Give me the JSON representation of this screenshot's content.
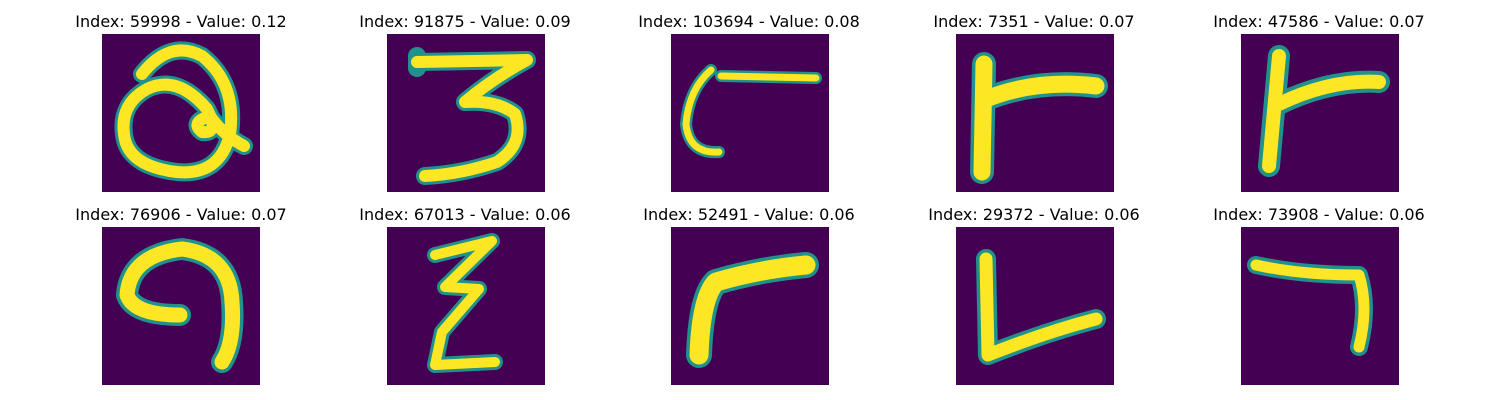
{
  "colors": {
    "background": "#440154",
    "stroke_core": "#fde725",
    "stroke_mid": "#5ec962",
    "stroke_edge": "#21918c"
  },
  "panels": [
    {
      "title": "Index: 59998 - Value: 0.12",
      "glyph": "looped-a-figure"
    },
    {
      "title": "Index: 91875 - Value: 0.09",
      "glyph": "three-figure"
    },
    {
      "title": "Index: 103694 - Value: 0.08",
      "glyph": "hook-with-bar-figure"
    },
    {
      "title": "Index: 7351 - Value: 0.07",
      "glyph": "r-shape-figure"
    },
    {
      "title": "Index: 47586 - Value: 0.07",
      "glyph": "r-shape-figure"
    },
    {
      "title": "Index: 76906 - Value: 0.07",
      "glyph": "nine-loop-figure"
    },
    {
      "title": "Index: 67013 - Value: 0.06",
      "glyph": "zigzag-figure"
    },
    {
      "title": "Index: 52491 - Value: 0.06",
      "glyph": "r-curve-figure"
    },
    {
      "title": "Index: 29372 - Value: 0.06",
      "glyph": "l-shape-figure"
    },
    {
      "title": "Index: 73908 - Value: 0.06",
      "glyph": "seven-hook-figure"
    }
  ]
}
